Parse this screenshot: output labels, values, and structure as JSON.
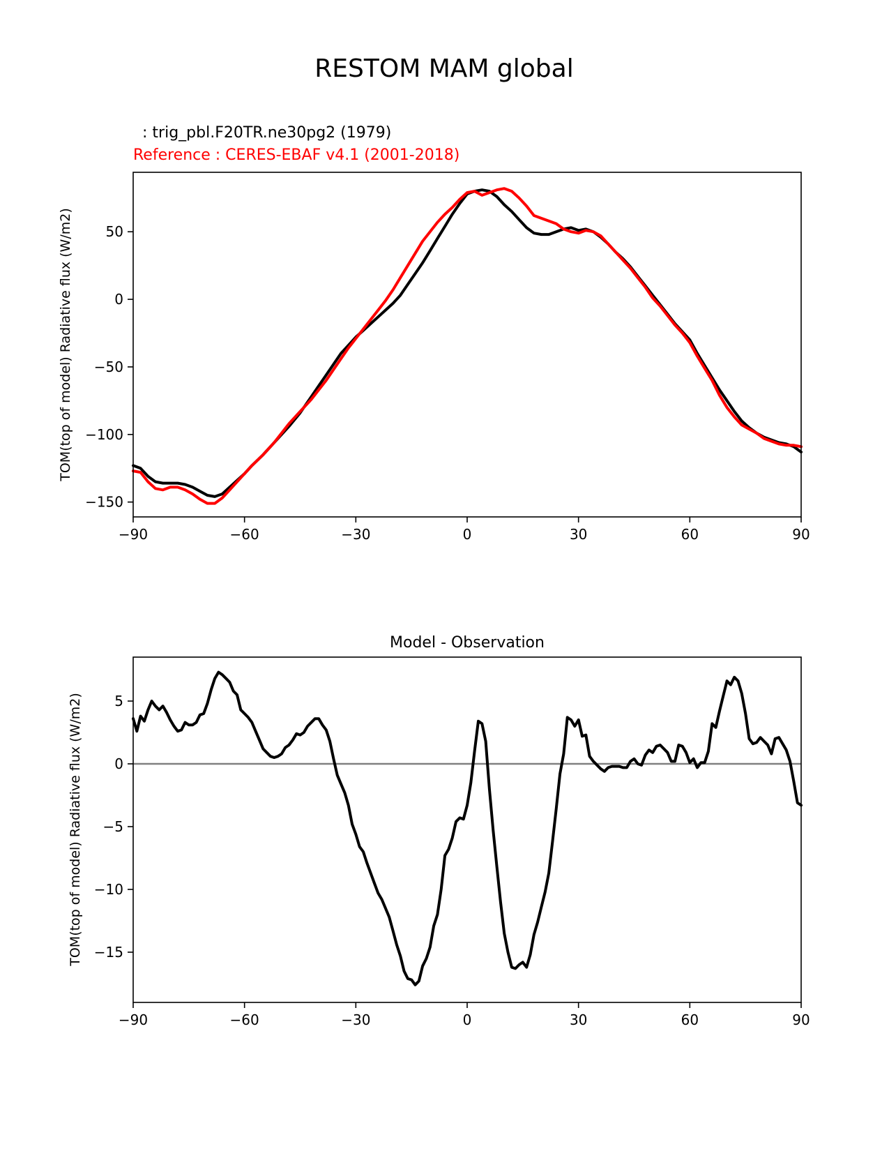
{
  "figure": {
    "title": "RESTOM MAM global"
  },
  "chart_data": [
    {
      "type": "line",
      "title_left_1": ": trig_pbl.F20TR.ne30pg2 (1979)",
      "title_left_2": "Reference : CERES-EBAF v4.1 (2001-2018)",
      "xlabel": "",
      "ylabel": "TOM(top of model) Radiative flux (W/m2)",
      "xlim": [
        -90,
        90
      ],
      "ylim": [
        -161,
        94
      ],
      "xticks": [
        -90,
        -60,
        -30,
        0,
        30,
        60,
        90
      ],
      "xtick_labels": [
        "−90",
        "−60",
        "−30",
        "0",
        "30",
        "60",
        "90"
      ],
      "yticks": [
        -150,
        -100,
        -50,
        0,
        50
      ],
      "ytick_labels": [
        "−150",
        "−100",
        "−50",
        "0",
        "50"
      ],
      "series": [
        {
          "color": "#000000",
          "x": [
            -90,
            -88,
            -86,
            -84,
            -82,
            -80,
            -78,
            -76,
            -74,
            -72,
            -70,
            -68,
            -66,
            -64,
            -62,
            -60,
            -58,
            -55,
            -52,
            -50,
            -48,
            -45,
            -42,
            -40,
            -38,
            -36,
            -34,
            -32,
            -30,
            -28,
            -26,
            -24,
            -22,
            -20,
            -18,
            -16,
            -14,
            -12,
            -10,
            -8,
            -6,
            -4,
            -2,
            0,
            2,
            4,
            6,
            8,
            10,
            12,
            14,
            16,
            18,
            20,
            22,
            24,
            26,
            28,
            30,
            32,
            34,
            36,
            38,
            40,
            42,
            44,
            46,
            48,
            50,
            52,
            54,
            56,
            58,
            60,
            62,
            64,
            66,
            68,
            70,
            72,
            74,
            76,
            78,
            80,
            82,
            84,
            86,
            88,
            90
          ],
          "values": [
            -123,
            -125,
            -131,
            -135,
            -136,
            -136,
            -136,
            -137,
            -139,
            -142,
            -145,
            -146,
            -144,
            -139,
            -134,
            -129,
            -123,
            -115,
            -106,
            -100,
            -94,
            -84,
            -72,
            -64,
            -56,
            -48,
            -40,
            -34,
            -28,
            -23,
            -18,
            -13,
            -8,
            -3,
            3,
            11,
            19,
            27,
            36,
            45,
            54,
            63,
            71,
            78,
            80,
            81,
            80,
            76,
            70,
            65,
            59,
            53,
            49,
            48,
            48,
            50,
            52,
            53,
            51,
            52,
            50,
            46,
            41,
            35,
            30,
            24,
            17,
            10,
            3,
            -4,
            -11,
            -18,
            -24,
            -30,
            -40,
            -49,
            -58,
            -67,
            -75,
            -83,
            -90,
            -95,
            -99,
            -102,
            -104,
            -106,
            -107,
            -109,
            -113
          ]
        },
        {
          "color": "#ff0000",
          "x": [
            -90,
            -88,
            -86,
            -84,
            -82,
            -80,
            -78,
            -76,
            -74,
            -72,
            -70,
            -68,
            -66,
            -64,
            -62,
            -60,
            -58,
            -55,
            -52,
            -50,
            -48,
            -45,
            -42,
            -40,
            -38,
            -36,
            -34,
            -32,
            -30,
            -28,
            -26,
            -24,
            -22,
            -20,
            -18,
            -16,
            -14,
            -12,
            -10,
            -8,
            -6,
            -4,
            -2,
            0,
            2,
            4,
            6,
            8,
            10,
            12,
            14,
            16,
            18,
            20,
            22,
            24,
            26,
            28,
            30,
            32,
            34,
            36,
            38,
            40,
            42,
            44,
            46,
            48,
            50,
            52,
            54,
            56,
            58,
            60,
            62,
            64,
            66,
            68,
            70,
            72,
            74,
            76,
            78,
            80,
            82,
            84,
            86,
            88,
            90
          ],
          "values": [
            -127,
            -128,
            -135,
            -140,
            -141,
            -139,
            -139,
            -141,
            -144,
            -148,
            -151,
            -151,
            -147,
            -141,
            -135,
            -129,
            -123,
            -115,
            -106,
            -99,
            -92,
            -83,
            -74,
            -67,
            -60,
            -52,
            -44,
            -36,
            -29,
            -22,
            -15,
            -8,
            -1,
            7,
            16,
            25,
            34,
            43,
            50,
            57,
            63,
            68,
            74,
            79,
            80,
            77,
            79,
            81,
            82,
            80,
            75,
            69,
            62,
            60,
            58,
            56,
            52,
            50,
            49,
            51,
            50,
            47,
            41,
            35,
            29,
            23,
            16,
            9,
            1,
            -5,
            -12,
            -19,
            -25,
            -32,
            -42,
            -51,
            -60,
            -71,
            -80,
            -87,
            -93,
            -96,
            -99,
            -103,
            -105,
            -107,
            -108,
            -108,
            -109
          ]
        }
      ]
    },
    {
      "type": "line",
      "title": "Model - Observation",
      "xlabel": "",
      "ylabel": "TOM(top of model) Radiative flux (W/m2)",
      "xlim": [
        -90,
        90
      ],
      "ylim": [
        -19,
        8.5
      ],
      "xticks": [
        -90,
        -60,
        -30,
        0,
        30,
        60,
        90
      ],
      "xtick_labels": [
        "−90",
        "−60",
        "−30",
        "0",
        "30",
        "60",
        "90"
      ],
      "yticks": [
        -15,
        -10,
        -5,
        0,
        5
      ],
      "ytick_labels": [
        "−15",
        "−10",
        "−5",
        "0",
        "5"
      ],
      "zero_line_color": "#808080",
      "series": [
        {
          "color": "#000000",
          "x": [
            -90,
            -89,
            -88,
            -87,
            -86,
            -85,
            -84,
            -83,
            -82,
            -81,
            -80,
            -79,
            -78,
            -77,
            -76,
            -75,
            -74,
            -73,
            -72,
            -71,
            -70,
            -69,
            -68,
            -67,
            -66,
            -65,
            -64,
            -63,
            -62,
            -61,
            -60,
            -59,
            -58,
            -57,
            -56,
            -55,
            -54,
            -53,
            -52,
            -51,
            -50,
            -49,
            -48,
            -47,
            -46,
            -45,
            -44,
            -43,
            -42,
            -41,
            -40,
            -39,
            -38,
            -37,
            -36,
            -35,
            -34,
            -33,
            -32,
            -31,
            -30,
            -29,
            -28,
            -27,
            -26,
            -25,
            -24,
            -23,
            -22,
            -21,
            -20,
            -19,
            -18,
            -17,
            -16,
            -15,
            -14,
            -13,
            -12,
            -11,
            -10,
            -9,
            -8,
            -7,
            -6,
            -5,
            -4,
            -3,
            -2,
            -1,
            0,
            1,
            2,
            3,
            4,
            5,
            6,
            7,
            8,
            9,
            10,
            11,
            12,
            13,
            14,
            15,
            16,
            17,
            18,
            19,
            20,
            21,
            22,
            23,
            24,
            25,
            26,
            27,
            28,
            29,
            30,
            31,
            32,
            33,
            34,
            35,
            36,
            37,
            38,
            39,
            40,
            41,
            42,
            43,
            44,
            45,
            46,
            47,
            48,
            49,
            50,
            51,
            52,
            53,
            54,
            55,
            56,
            57,
            58,
            59,
            60,
            61,
            62,
            63,
            64,
            65,
            66,
            67,
            68,
            69,
            70,
            71,
            72,
            73,
            74,
            75,
            76,
            77,
            78,
            79,
            80,
            81,
            82,
            83,
            84,
            85,
            86,
            87,
            88,
            89,
            90
          ],
          "values": [
            3.6,
            2.6,
            3.8,
            3.4,
            4.3,
            5.0,
            4.6,
            4.3,
            4.6,
            4.1,
            3.5,
            3.0,
            2.6,
            2.7,
            3.3,
            3.1,
            3.1,
            3.3,
            3.9,
            4.0,
            4.8,
            5.9,
            6.8,
            7.3,
            7.1,
            6.8,
            6.5,
            5.8,
            5.5,
            4.3,
            4.0,
            3.7,
            3.3,
            2.6,
            1.9,
            1.2,
            0.9,
            0.6,
            0.5,
            0.6,
            0.8,
            1.3,
            1.5,
            1.9,
            2.4,
            2.3,
            2.5,
            3.0,
            3.3,
            3.6,
            3.6,
            3.1,
            2.7,
            1.8,
            0.4,
            -0.9,
            -1.6,
            -2.3,
            -3.3,
            -4.8,
            -5.6,
            -6.6,
            -7.0,
            -7.9,
            -8.7,
            -9.5,
            -10.3,
            -10.8,
            -11.5,
            -12.2,
            -13.3,
            -14.4,
            -15.3,
            -16.5,
            -17.1,
            -17.2,
            -17.6,
            -17.3,
            -16.1,
            -15.5,
            -14.6,
            -12.9,
            -12.0,
            -10.0,
            -7.3,
            -6.8,
            -5.9,
            -4.6,
            -4.3,
            -4.4,
            -3.3,
            -1.5,
            1.0,
            3.4,
            3.2,
            1.8,
            -2.0,
            -5.3,
            -8.2,
            -11.0,
            -13.5,
            -15.0,
            -16.2,
            -16.3,
            -16.0,
            -15.8,
            -16.2,
            -15.2,
            -13.6,
            -12.6,
            -11.4,
            -10.2,
            -8.7,
            -6.2,
            -3.6,
            -0.8,
            0.8,
            3.7,
            3.5,
            3.0,
            3.5,
            2.2,
            2.3,
            0.6,
            0.2,
            -0.1,
            -0.4,
            -0.6,
            -0.3,
            -0.2,
            -0.2,
            -0.2,
            -0.3,
            -0.3,
            0.2,
            0.4,
            0.0,
            -0.1,
            0.7,
            1.1,
            0.9,
            1.4,
            1.5,
            1.2,
            0.9,
            0.2,
            0.2,
            1.5,
            1.4,
            0.9,
            0.1,
            0.4,
            -0.3,
            0.1,
            0.1,
            1.0,
            3.2,
            2.9,
            4.2,
            5.4,
            6.6,
            6.3,
            6.9,
            6.6,
            5.6,
            4.0,
            2.0,
            1.6,
            1.7,
            2.1,
            1.8,
            1.5,
            0.8,
            2.0,
            2.1,
            1.6,
            1.1,
            0.2,
            -1.4,
            -3.1,
            -3.3
          ]
        }
      ]
    }
  ]
}
